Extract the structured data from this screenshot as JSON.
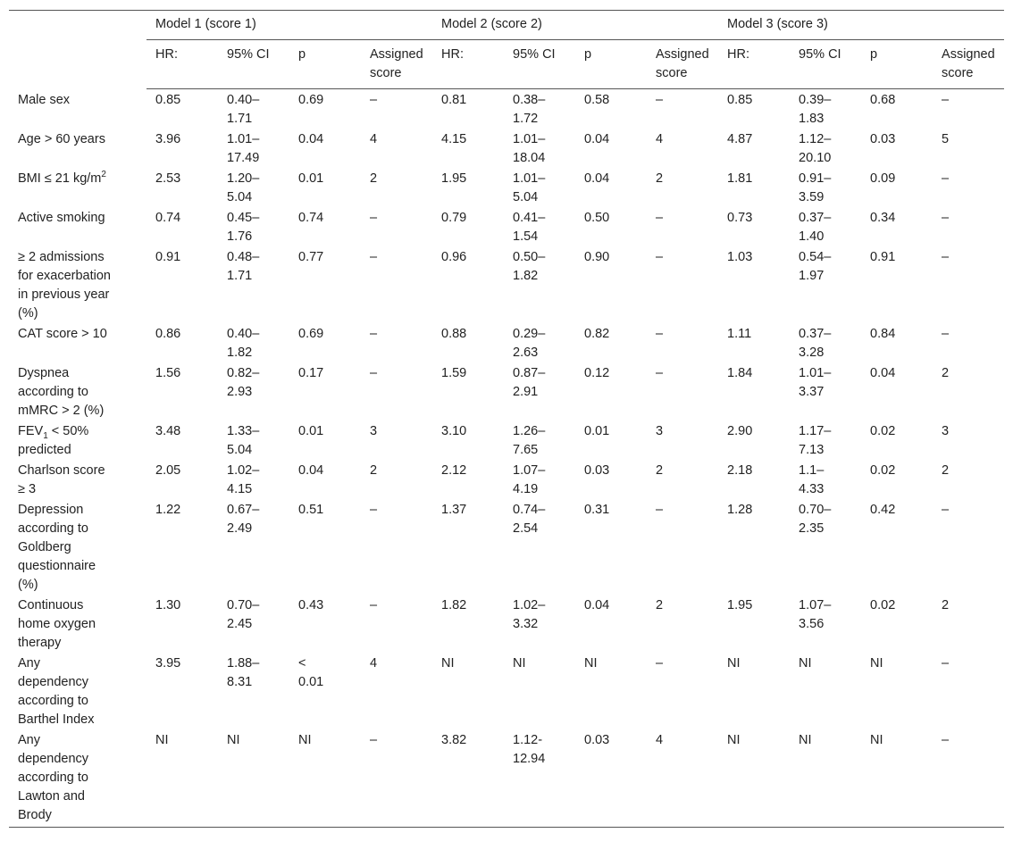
{
  "table": {
    "groups": [
      "Model 1 (score 1)",
      "Model 2 (score 2)",
      "Model 3 (score 3)"
    ],
    "columns": [
      "HR:",
      "95% CI",
      "p",
      "Assigned score",
      "HR:",
      "95% CI",
      "p",
      "Assigned score",
      "HR:",
      "95% CI",
      "p",
      "Assigned score"
    ],
    "rows": [
      {
        "label": "Male sex",
        "cells": [
          "0.85",
          "0.40–1.71",
          "0.69",
          "–",
          "0.81",
          "0.38–1.72",
          "0.58",
          "–",
          "0.85",
          "0.39–1.83",
          "0.68",
          "–"
        ]
      },
      {
        "label": "Age > 60 years",
        "cells": [
          "3.96",
          "1.01–17.49",
          "0.04",
          "4",
          "4.15",
          "1.01–18.04",
          "0.04",
          "4",
          "4.87",
          "1.12–20.10",
          "0.03",
          "5"
        ]
      },
      {
        "label": [
          {
            "text": "BMI ≤ 21 kg/m"
          },
          {
            "sup": "2"
          }
        ],
        "cells": [
          "2.53",
          "1.20–5.04",
          "0.01",
          "2",
          "1.95",
          "1.01–5.04",
          "0.04",
          "2",
          "1.81",
          "0.91–3.59",
          "0.09",
          "–"
        ]
      },
      {
        "label": "Active smoking",
        "cells": [
          "0.74",
          "0.45–1.76",
          "0.74",
          "–",
          "0.79",
          "0.41–1.54",
          "0.50",
          "–",
          "0.73",
          "0.37–1.40",
          "0.34",
          "–"
        ]
      },
      {
        "label": "≥ 2 admissions for exacerbation in previous year (%)",
        "cells": [
          "0.91",
          "0.48–1.71",
          "0.77",
          "–",
          "0.96",
          "0.50–1.82",
          "0.90",
          "–",
          "1.03",
          "0.54–1.97",
          "0.91",
          "–"
        ]
      },
      {
        "label": "CAT score > 10",
        "cells": [
          "0.86",
          "0.40–1.82",
          "0.69",
          "–",
          "0.88",
          "0.29–2.63",
          "0.82",
          "–",
          "1.11",
          "0.37–3.28",
          "0.84",
          "–"
        ]
      },
      {
        "label": "Dyspnea according to mMRC > 2 (%)",
        "cells": [
          "1.56",
          "0.82–2.93",
          "0.17",
          "–",
          "1.59",
          "0.87–2.91",
          "0.12",
          "–",
          "1.84",
          "1.01–3.37",
          "0.04",
          "2"
        ]
      },
      {
        "label": [
          {
            "text": "FEV"
          },
          {
            "sub": "1"
          },
          {
            "text": " < 50% predicted"
          }
        ],
        "cells": [
          "3.48",
          "1.33–5.04",
          "0.01",
          "3",
          "3.10",
          "1.26–7.65",
          "0.01",
          "3",
          "2.90",
          "1.17–7.13",
          "0.02",
          "3"
        ]
      },
      {
        "label": "Charlson score ≥ 3",
        "cells": [
          "2.05",
          "1.02–4.15",
          "0.04",
          "2",
          "2.12",
          "1.07–4.19",
          "0.03",
          "2",
          "2.18",
          "1.1–4.33",
          "0.02",
          "2"
        ]
      },
      {
        "label": "Depression according to Goldberg questionnaire (%)",
        "cells": [
          "1.22",
          "0.67–2.49",
          "0.51",
          "–",
          "1.37",
          "0.74–2.54",
          "0.31",
          "–",
          "1.28",
          "0.70–2.35",
          "0.42",
          "–"
        ]
      },
      {
        "label": "Continuous home oxygen therapy",
        "cells": [
          "1.30",
          "0.70–2.45",
          "0.43",
          "–",
          "1.82",
          "1.02–3.32",
          "0.04",
          "2",
          "1.95",
          "1.07–3.56",
          "0.02",
          "2"
        ]
      },
      {
        "label": "Any dependency according to Barthel Index",
        "cells": [
          "3.95",
          "1.88–8.31",
          "< 0.01",
          "4",
          "NI",
          "NI",
          "NI",
          "–",
          "NI",
          "NI",
          "NI",
          "–"
        ]
      },
      {
        "label": "Any dependency according to Lawton and Brody",
        "cells": [
          "NI",
          "NI",
          "NI",
          "–",
          "3.82",
          "1.12-12.94",
          "0.03",
          "4",
          "NI",
          "NI",
          "NI",
          "–"
        ]
      }
    ]
  }
}
